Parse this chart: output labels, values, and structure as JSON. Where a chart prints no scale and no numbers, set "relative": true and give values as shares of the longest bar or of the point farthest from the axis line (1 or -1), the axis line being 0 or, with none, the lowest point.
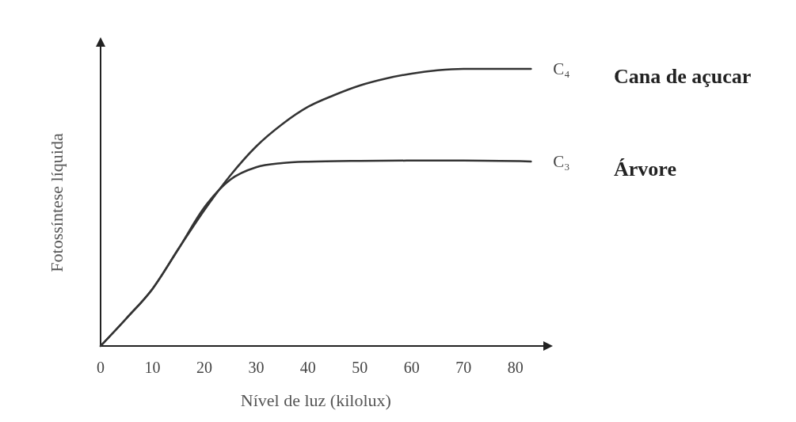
{
  "chart_data": {
    "type": "line",
    "relative": true,
    "xlabel": "Nível de luz (kilolux)",
    "ylabel": "Fotossíntese líquida",
    "xlim": [
      0,
      86
    ],
    "xticks": [
      0,
      10,
      20,
      30,
      40,
      50,
      60,
      70,
      80
    ],
    "grid": false,
    "line_style": "solid",
    "series": [
      {
        "name": "C₄",
        "color": "#333333",
        "x": [
          0,
          5,
          10,
          15,
          20,
          25,
          30,
          35,
          40,
          45,
          50,
          55,
          60,
          65,
          70,
          75,
          83
        ],
        "values": [
          0,
          0.1,
          0.206,
          0.35,
          0.49,
          0.615,
          0.72,
          0.8,
          0.863,
          0.905,
          0.94,
          0.965,
          0.983,
          0.995,
          1,
          1,
          1
        ]
      },
      {
        "name": "C₃",
        "color": "#333333",
        "x": [
          0,
          5,
          10,
          15,
          20,
          25,
          30,
          35,
          40,
          50,
          60,
          70,
          83
        ],
        "values": [
          0,
          0.1,
          0.206,
          0.35,
          0.5,
          0.6,
          0.645,
          0.66,
          0.665,
          0.668,
          0.669,
          0.669,
          0.666
        ]
      }
    ],
    "annotations": [
      "Cana de açucar",
      "Árvore"
    ]
  }
}
